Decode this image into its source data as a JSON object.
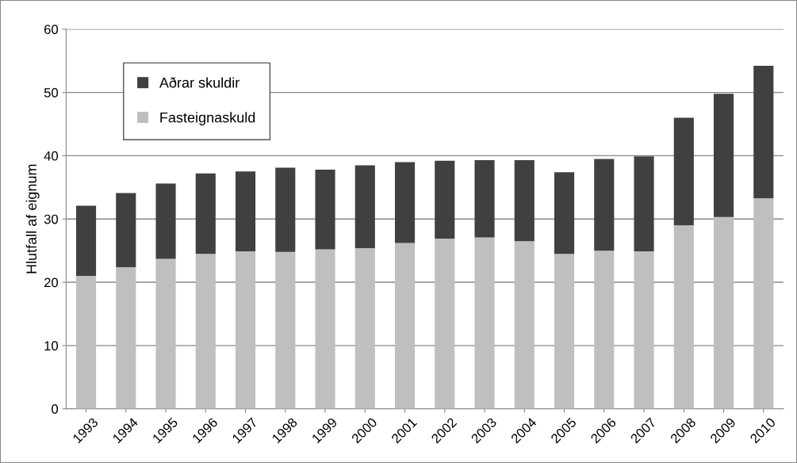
{
  "chart_data": {
    "type": "bar",
    "stacked": true,
    "ylabel": "Hlutfall af eignum",
    "categories": [
      "1993",
      "1994",
      "1995",
      "1996",
      "1997",
      "1998",
      "1999",
      "2000",
      "2001",
      "2002",
      "2003",
      "2004",
      "2005",
      "2006",
      "2007",
      "2008",
      "2009",
      "2010"
    ],
    "series": [
      {
        "name": "Fasteignaskuld",
        "color": "#bfbfbf",
        "values": [
          21.0,
          22.4,
          23.7,
          24.5,
          24.9,
          24.8,
          25.2,
          25.4,
          26.2,
          26.9,
          27.1,
          26.5,
          24.5,
          25.0,
          24.9,
          29.0,
          30.3,
          33.3
        ]
      },
      {
        "name": "Aðrar skuldir",
        "color": "#404040",
        "values": [
          11.1,
          11.7,
          11.9,
          12.7,
          12.6,
          13.3,
          12.6,
          13.1,
          12.8,
          12.3,
          12.2,
          12.8,
          12.9,
          14.5,
          15.0,
          17.0,
          19.5,
          20.9
        ]
      }
    ],
    "ylim": [
      0,
      60
    ],
    "yticks": [
      0,
      10,
      20,
      30,
      40,
      50,
      60
    ],
    "grid": "y",
    "legend": "top left"
  }
}
